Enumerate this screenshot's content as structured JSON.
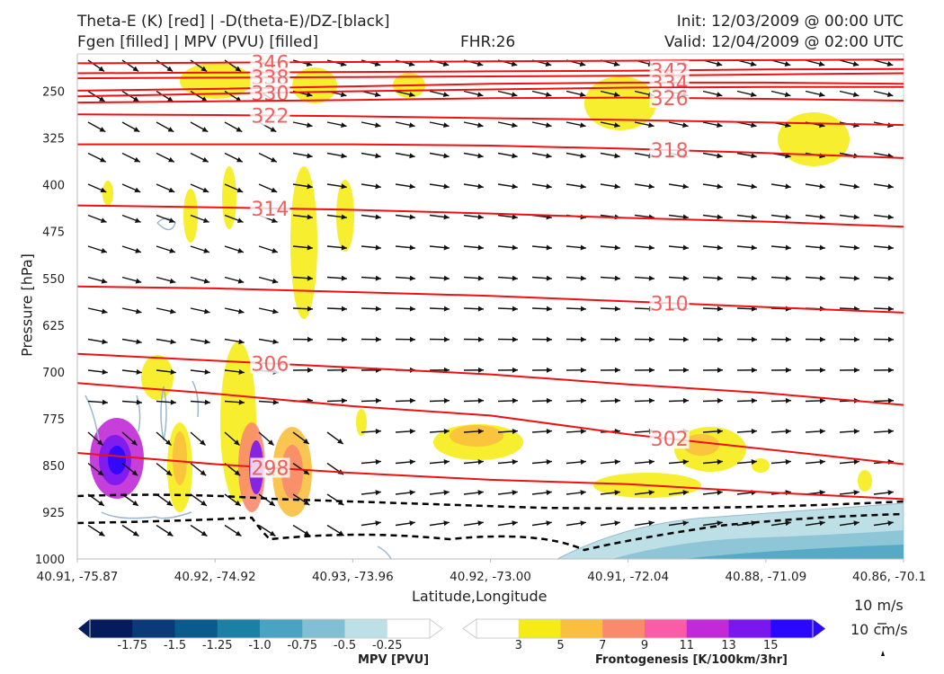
{
  "titles": {
    "left_line1": "Theta-E (K) [red] | -D(theta-E)/DZ-[black]",
    "left_line2": "Fgen [filled] | MPV (PVU) [filled]",
    "center_line2": "FHR:26",
    "right_line1": "Init: 12/03/2009 @ 00:00 UTC",
    "right_line2": "Valid: 12/04/2009 @ 02:00 UTC"
  },
  "chart_data": {
    "type": "cross-section",
    "xlabel": "Latitude,Longitude",
    "ylabel": "Pressure [hPa]",
    "x_ticks": [
      "40.91, -75.87",
      "40.92, -74.92",
      "40.93, -73.96",
      "40.92, -73.00",
      "40.91, -72.04",
      "40.88, -71.09",
      "40.86, -70.1"
    ],
    "y_ticks": [
      250,
      325,
      400,
      475,
      550,
      625,
      700,
      775,
      850,
      925,
      1000
    ],
    "ylim": [
      1000,
      190
    ],
    "theta_e_contours": [
      {
        "label": "346",
        "p": [
          205,
          204,
          203,
          202,
          201,
          200,
          199
        ]
      },
      {
        "label": "342",
        "p": [
          221,
          220,
          219,
          218,
          217,
          215,
          214
        ]
      },
      {
        "label": "338",
        "p": [
          229,
          228,
          227,
          226,
          225,
          223,
          221
        ]
      },
      {
        "label": "334",
        "p": [
          249,
          246,
          242,
          238,
          236,
          236,
          238
        ]
      },
      {
        "label": "330",
        "p": [
          258,
          254,
          250,
          247,
          244,
          243,
          243
        ]
      },
      {
        "label": "326",
        "p": [
          268,
          266,
          264,
          261,
          260,
          262,
          265
        ]
      },
      {
        "label": "322",
        "p": [
          287,
          288,
          290,
          293,
          296,
          300,
          304
        ]
      },
      {
        "label": "318",
        "p": [
          335,
          335,
          335,
          337,
          342,
          349,
          357
        ]
      },
      {
        "label": "314",
        "p": [
          433,
          436,
          440,
          446,
          453,
          459,
          467
        ]
      },
      {
        "label": "310",
        "p": [
          563,
          566,
          572,
          578,
          587,
          596,
          605
        ]
      },
      {
        "label": "306",
        "p": [
          671,
          682,
          693,
          704,
          720,
          734,
          753
        ]
      },
      {
        "label": "302",
        "p": [
          718,
          735,
          755,
          770,
          800,
          824,
          848
        ]
      },
      {
        "label": "298",
        "p": [
          830,
          848,
          862,
          873,
          880,
          893,
          904
        ]
      }
    ],
    "frontogenesis_levels": [
      3,
      5,
      7,
      9,
      11,
      13,
      15
    ],
    "frontogenesis_colors": [
      "#ffffa0",
      "#f5ec17",
      "#fbbf3f",
      "#f98a6c",
      "#fa5ca8",
      "#c12ad6",
      "#7a17ee",
      "#2a08ff"
    ],
    "frontogenesis_label": "Frontogenesis [K/100km/3hr]",
    "mpv_levels": [
      -1.75,
      -1.5,
      -1.25,
      -1.0,
      -0.75,
      -0.5,
      -0.25
    ],
    "mpv_colors": [
      "#051c5c",
      "#0a3a78",
      "#0a5b8c",
      "#1b80a4",
      "#4aa3c2",
      "#82bfd4",
      "#bddfe6",
      "#ffffff"
    ],
    "mpv_label": "MPV [PVU]",
    "wind_scale_labels": [
      "10 m/s",
      "10 cm/s"
    ]
  }
}
